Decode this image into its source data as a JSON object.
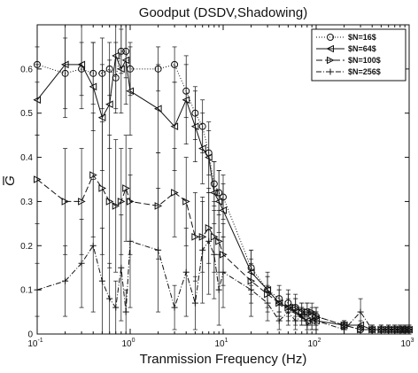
{
  "chart_data": {
    "type": "line",
    "title": "Goodput (DSDV,Shadowing)",
    "xlabel": "Tranmission Frequency (Hz)",
    "ylabel": "G",
    "xscale": "log",
    "xlim": [
      0.1,
      1000
    ],
    "ylim": [
      0,
      0.7
    ],
    "grid": false,
    "legend": "top-right",
    "x_ticks": [
      {
        "base": "10",
        "exp": "-1"
      },
      {
        "base": "10",
        "exp": "0"
      },
      {
        "base": "10",
        "exp": "1"
      },
      {
        "base": "10",
        "exp": "2"
      },
      {
        "base": "10",
        "exp": "3"
      }
    ],
    "y_ticks": [
      "0",
      "0.1",
      "0.2",
      "0.3",
      "0.4",
      "0.5",
      "0.6"
    ],
    "series": [
      {
        "name": "$N=16$",
        "marker": "circle",
        "dash": "1,2",
        "points": [
          [
            0.1,
            0.61,
            0.04
          ],
          [
            0.2,
            0.59,
            0.08
          ],
          [
            0.3,
            0.6,
            0.06
          ],
          [
            0.4,
            0.59,
            0.07
          ],
          [
            0.5,
            0.59,
            0.08
          ],
          [
            0.6,
            0.6,
            0.06
          ],
          [
            0.7,
            0.58,
            0.08
          ],
          [
            0.8,
            0.64,
            0.05
          ],
          [
            0.9,
            0.64,
            0.06
          ],
          [
            1.0,
            0.6,
            0.06
          ],
          [
            2.0,
            0.6,
            0.05
          ],
          [
            3.0,
            0.61,
            0.04
          ],
          [
            4.0,
            0.55,
            0.06
          ],
          [
            5.0,
            0.5,
            0.06
          ],
          [
            6.0,
            0.47,
            0.06
          ],
          [
            7.0,
            0.41,
            0.05
          ],
          [
            8.0,
            0.34,
            0.05
          ],
          [
            9.0,
            0.32,
            0.05
          ],
          [
            10,
            0.31,
            0.05
          ],
          [
            20,
            0.15,
            0.04
          ],
          [
            30,
            0.1,
            0.03
          ],
          [
            40,
            0.08,
            0.03
          ],
          [
            50,
            0.07,
            0.03
          ],
          [
            60,
            0.06,
            0.02
          ],
          [
            70,
            0.05,
            0.02
          ],
          [
            80,
            0.05,
            0.02
          ],
          [
            90,
            0.04,
            0.02
          ],
          [
            100,
            0.04,
            0.02
          ],
          [
            200,
            0.02,
            0.01
          ],
          [
            300,
            0.01,
            0.01
          ],
          [
            400,
            0.01,
            0.01
          ],
          [
            500,
            0.01,
            0.01
          ],
          [
            600,
            0.01,
            0.01
          ],
          [
            700,
            0.01,
            0.01
          ],
          [
            800,
            0.01,
            0.01
          ],
          [
            900,
            0.01,
            0.01
          ],
          [
            1000,
            0.01,
            0.01
          ]
        ]
      },
      {
        "name": "$N=64$",
        "marker": "triangle-left",
        "dash": "",
        "points": [
          [
            0.1,
            0.53,
            0.08
          ],
          [
            0.2,
            0.61,
            0.12
          ],
          [
            0.3,
            0.61,
            0.1
          ],
          [
            0.4,
            0.56,
            0.1
          ],
          [
            0.5,
            0.49,
            0.12
          ],
          [
            0.6,
            0.52,
            0.1
          ],
          [
            0.7,
            0.63,
            0.12
          ],
          [
            0.8,
            0.6,
            0.1
          ],
          [
            0.9,
            0.62,
            0.1
          ],
          [
            1.0,
            0.55,
            0.1
          ],
          [
            2.0,
            0.51,
            0.1
          ],
          [
            3.0,
            0.47,
            0.1
          ],
          [
            4.0,
            0.53,
            0.1
          ],
          [
            5.0,
            0.47,
            0.08
          ],
          [
            6.0,
            0.42,
            0.08
          ],
          [
            7.0,
            0.4,
            0.08
          ],
          [
            8.0,
            0.32,
            0.07
          ],
          [
            9.0,
            0.3,
            0.07
          ],
          [
            10,
            0.28,
            0.06
          ],
          [
            20,
            0.14,
            0.05
          ],
          [
            30,
            0.1,
            0.04
          ],
          [
            40,
            0.07,
            0.03
          ],
          [
            50,
            0.06,
            0.03
          ],
          [
            60,
            0.05,
            0.03
          ],
          [
            70,
            0.04,
            0.02
          ],
          [
            80,
            0.03,
            0.02
          ],
          [
            90,
            0.03,
            0.02
          ],
          [
            100,
            0.03,
            0.02
          ],
          [
            200,
            0.02,
            0.01
          ],
          [
            300,
            0.02,
            0.01
          ],
          [
            400,
            0.01,
            0.01
          ],
          [
            500,
            0.01,
            0.01
          ],
          [
            600,
            0.01,
            0.01
          ],
          [
            700,
            0.01,
            0.01
          ],
          [
            800,
            0.01,
            0.01
          ],
          [
            900,
            0.01,
            0.01
          ],
          [
            1000,
            0.01,
            0.01
          ]
        ]
      },
      {
        "name": "$N=100$",
        "marker": "triangle-right",
        "dash": "7,3",
        "points": [
          [
            0.1,
            0.35,
            0.1
          ],
          [
            0.2,
            0.3,
            0.12
          ],
          [
            0.3,
            0.3,
            0.12
          ],
          [
            0.4,
            0.36,
            0.14
          ],
          [
            0.5,
            0.33,
            0.15
          ],
          [
            0.6,
            0.3,
            0.15
          ],
          [
            0.7,
            0.29,
            0.15
          ],
          [
            0.8,
            0.3,
            0.12
          ],
          [
            0.9,
            0.33,
            0.12
          ],
          [
            1.0,
            0.3,
            0.12
          ],
          [
            2.0,
            0.29,
            0.12
          ],
          [
            3.0,
            0.32,
            0.1
          ],
          [
            4.0,
            0.3,
            0.1
          ],
          [
            5.0,
            0.22,
            0.1
          ],
          [
            6.0,
            0.22,
            0.08
          ],
          [
            7.0,
            0.24,
            0.08
          ],
          [
            8.0,
            0.22,
            0.08
          ],
          [
            9.0,
            0.21,
            0.07
          ],
          [
            10,
            0.18,
            0.07
          ],
          [
            20,
            0.12,
            0.05
          ],
          [
            30,
            0.09,
            0.04
          ],
          [
            40,
            0.07,
            0.03
          ],
          [
            50,
            0.06,
            0.03
          ],
          [
            60,
            0.06,
            0.03
          ],
          [
            70,
            0.05,
            0.02
          ],
          [
            80,
            0.05,
            0.02
          ],
          [
            90,
            0.05,
            0.02
          ],
          [
            100,
            0.04,
            0.02
          ],
          [
            200,
            0.02,
            0.01
          ],
          [
            300,
            0.01,
            0.01
          ],
          [
            400,
            0.01,
            0.01
          ],
          [
            500,
            0.01,
            0.01
          ],
          [
            600,
            0.01,
            0.01
          ],
          [
            700,
            0.01,
            0.01
          ],
          [
            800,
            0.01,
            0.01
          ],
          [
            900,
            0.01,
            0.01
          ],
          [
            1000,
            0.01,
            0.01
          ]
        ]
      },
      {
        "name": "$N=256$",
        "marker": "plus",
        "dash": "6,2,1,2",
        "points": [
          [
            0.1,
            0.1,
            0.06
          ],
          [
            0.2,
            0.12,
            0.08
          ],
          [
            0.3,
            0.16,
            0.1
          ],
          [
            0.4,
            0.2,
            0.15
          ],
          [
            0.5,
            0.12,
            0.12
          ],
          [
            0.6,
            0.08,
            0.08
          ],
          [
            0.7,
            0.06,
            0.06
          ],
          [
            0.8,
            0.15,
            0.12
          ],
          [
            0.9,
            0.05,
            0.05
          ],
          [
            1.0,
            0.21,
            0.15
          ],
          [
            2.0,
            0.19,
            0.14
          ],
          [
            3.0,
            0.06,
            0.05
          ],
          [
            4.0,
            0.14,
            0.1
          ],
          [
            5.0,
            0.07,
            0.06
          ],
          [
            6.0,
            0.19,
            0.12
          ],
          [
            7.0,
            0.21,
            0.12
          ],
          [
            8.0,
            0.18,
            0.1
          ],
          [
            9.0,
            0.1,
            0.08
          ],
          [
            10,
            0.14,
            0.08
          ],
          [
            20,
            0.1,
            0.06
          ],
          [
            30,
            0.07,
            0.04
          ],
          [
            40,
            0.03,
            0.02
          ],
          [
            50,
            0.05,
            0.03
          ],
          [
            60,
            0.03,
            0.02
          ],
          [
            70,
            0.04,
            0.02
          ],
          [
            80,
            0.02,
            0.02
          ],
          [
            90,
            0.03,
            0.02
          ],
          [
            100,
            0.03,
            0.02
          ],
          [
            200,
            0.01,
            0.01
          ],
          [
            300,
            0.05,
            0.03
          ],
          [
            400,
            0.01,
            0.01
          ],
          [
            500,
            0.01,
            0.01
          ],
          [
            600,
            0.01,
            0.01
          ],
          [
            700,
            0.01,
            0.01
          ],
          [
            800,
            0.01,
            0.01
          ],
          [
            900,
            0.01,
            0.01
          ],
          [
            1000,
            0.01,
            0.01
          ]
        ]
      }
    ]
  }
}
